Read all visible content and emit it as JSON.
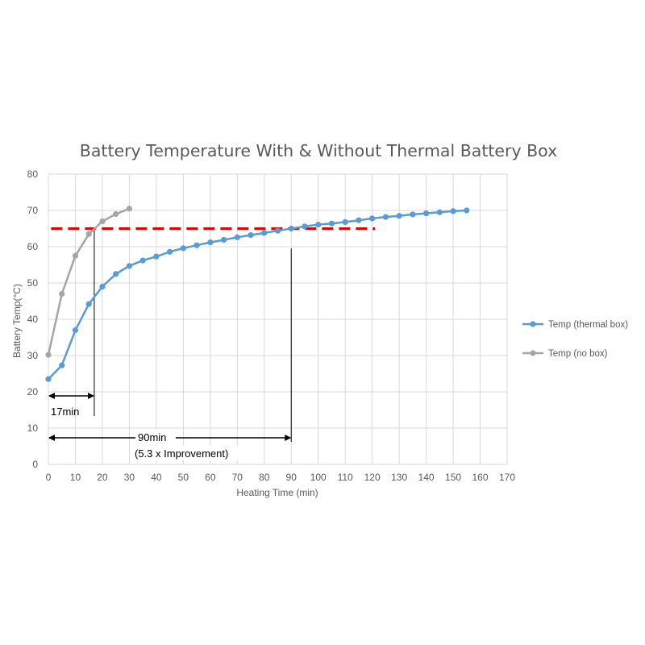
{
  "chart_data": {
    "type": "line",
    "title": "Battery Temperature With & Without Thermal Battery Box",
    "xlabel": "Heating Time (min)",
    "ylabel": "Battery Temp(°C)",
    "xlim": [
      0,
      170
    ],
    "ylim": [
      0,
      80
    ],
    "xticks": [
      "0",
      "10",
      "20",
      "30",
      "40",
      "50",
      "60",
      "70",
      "80",
      "90",
      "100",
      "110",
      "120",
      "130",
      "140",
      "150",
      "160",
      "170"
    ],
    "yticks": [
      "0",
      "10",
      "20",
      "30",
      "40",
      "50",
      "60",
      "70",
      "80"
    ],
    "grid": true,
    "legend_position": "right",
    "series": [
      {
        "name": "Temp (thermal box)",
        "color": "#5b9bd5",
        "x": [
          0,
          5,
          10,
          15,
          20,
          25,
          30,
          35,
          40,
          45,
          50,
          55,
          60,
          65,
          70,
          75,
          80,
          85,
          90,
          95,
          100,
          105,
          110,
          115,
          120,
          125,
          130,
          135,
          140,
          145,
          150,
          155
        ],
        "y": [
          23.5,
          27.3,
          37,
          44.2,
          49,
          52.5,
          54.7,
          56.2,
          57.3,
          58.6,
          59.6,
          60.4,
          61.2,
          61.9,
          62.6,
          63.2,
          63.8,
          64.4,
          65,
          65.6,
          66.1,
          66.4,
          66.8,
          67.3,
          67.8,
          68.2,
          68.5,
          68.9,
          69.2,
          69.5,
          69.8,
          70
        ]
      },
      {
        "name": "Temp (no box)",
        "color": "#a5a5a5",
        "x": [
          0,
          5,
          10,
          15,
          20,
          25,
          30
        ],
        "y": [
          30.2,
          47,
          57.5,
          63.5,
          67,
          69,
          70.5
        ]
      }
    ],
    "threshold": {
      "y": 65,
      "x_start": 1,
      "x_end": 121,
      "color": "#e00000"
    },
    "annotations": [
      {
        "text": "17min",
        "from_x": 0,
        "to_x": 17
      },
      {
        "text": "90min",
        "text2": "(5.3 x Improvement)",
        "from_x": 0,
        "to_x": 90
      }
    ]
  }
}
